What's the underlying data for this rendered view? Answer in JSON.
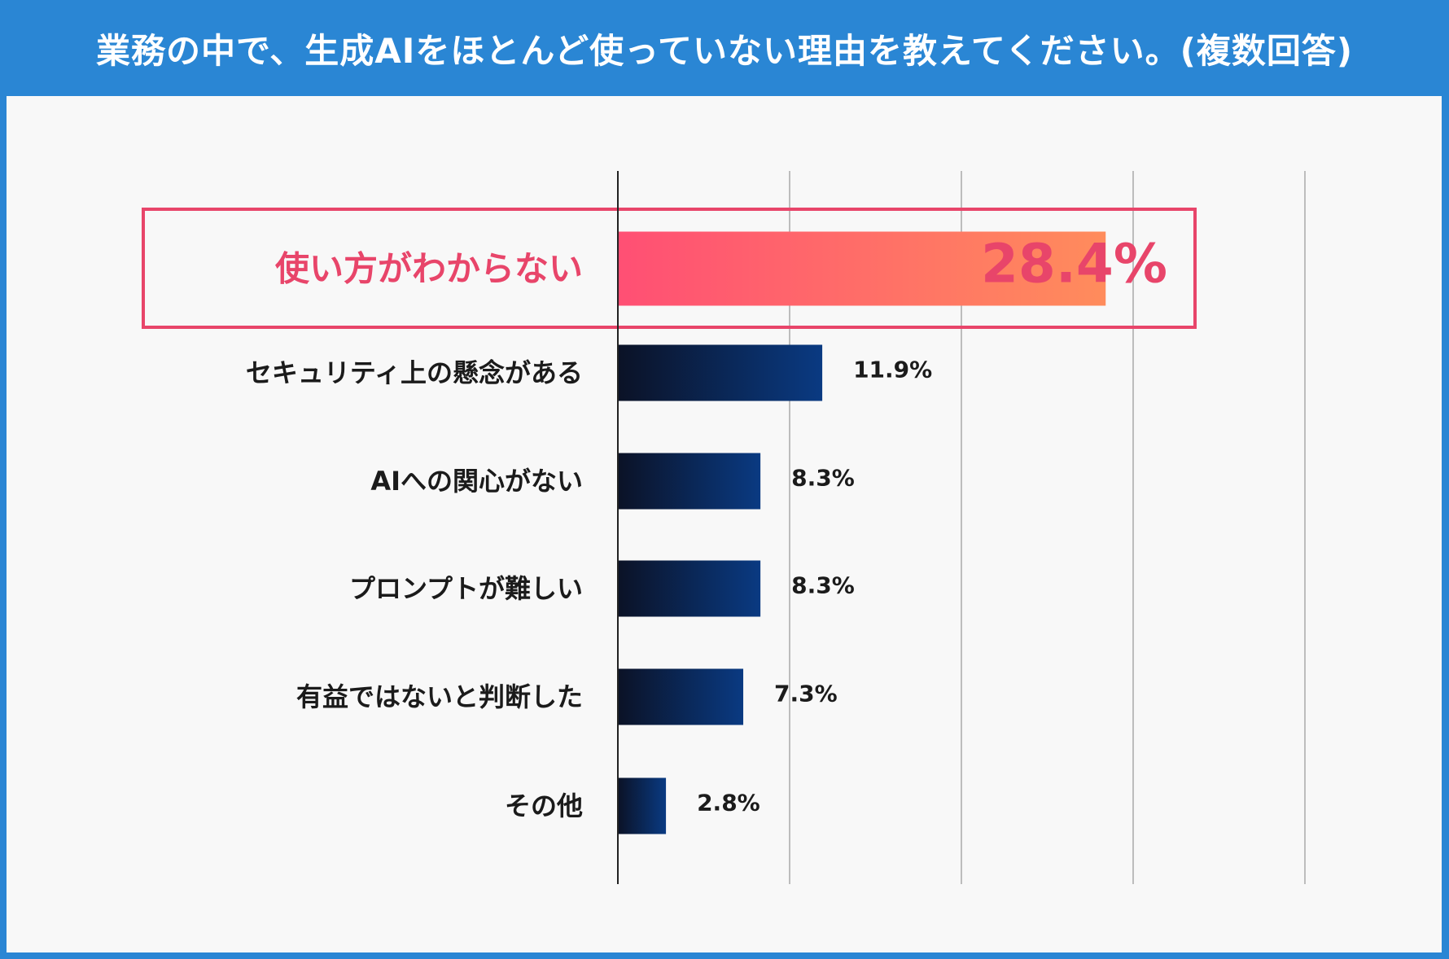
{
  "header": {
    "title": "業務の中で、生成AIをほとんど使っていない理由を教えてください。(複数回答)"
  },
  "colors": {
    "header_bg": "#2a86d4",
    "panel_bg": "#f8f8f8",
    "highlight": "#e8456a",
    "highlight_gradient_start": "#ff4f74",
    "highlight_gradient_end": "#ff8c5c",
    "bar_gradient_start": "#0b1226",
    "bar_gradient_end": "#0a3a82",
    "gridline": "#bdbdbd"
  },
  "chart_data": {
    "type": "bar",
    "orientation": "horizontal",
    "title": "業務の中で、生成AIをほとんど使っていない理由を教えてください。(複数回答)",
    "xlim": [
      0,
      40
    ],
    "grid": true,
    "unit": "%",
    "highlight_index": 0,
    "categories": [
      "使い方がわからない",
      "セキュリティ上の懸念がある",
      "AIへの関心がない",
      "プロンプトが難しい",
      "有益ではないと判断した",
      "その他"
    ],
    "values": [
      28.4,
      11.9,
      8.3,
      8.3,
      7.3,
      2.8
    ],
    "value_labels": [
      "28.4%",
      "11.9%",
      "8.3%",
      "8.3%",
      "7.3%",
      "2.8%"
    ]
  }
}
